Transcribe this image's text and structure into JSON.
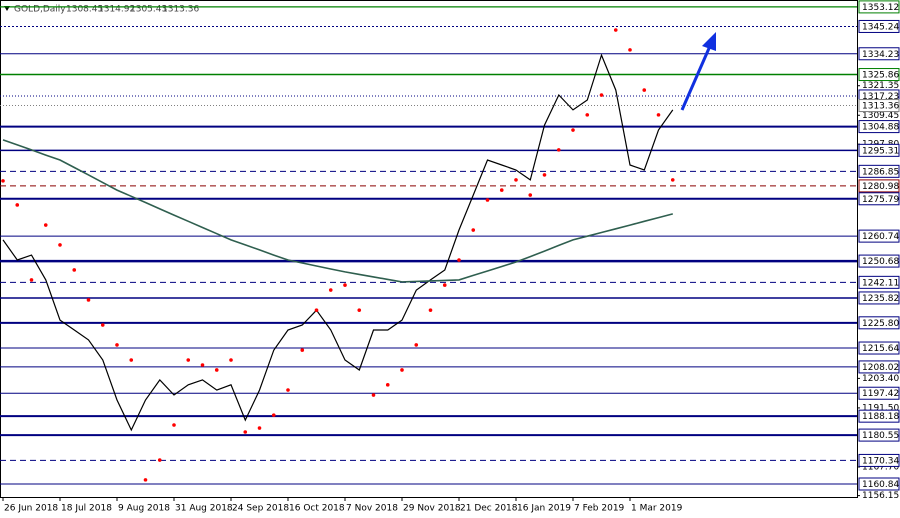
{
  "chart_data": {
    "type": "line",
    "symbol": "GOLD,Daily",
    "ohlc": [
      1308.45,
      1314.92,
      1305.43,
      1313.36
    ],
    "ylim": [
      1155.6,
      1355.9
    ],
    "yticks": [
      1321.35,
      1309.45,
      {
        "value": 1297.8,
        "label": "1297.80"
      },
      {
        "value": 1203.4,
        "label": "1203.40"
      },
      {
        "value": 1191.5,
        "label": "1191.50"
      },
      {
        "value": 1167.7,
        "label": "1167.70"
      },
      1156.15
    ],
    "levels": [
      {
        "value": 1353.12,
        "color": "#008000",
        "width": 1.2
      },
      {
        "value": 1345.24,
        "color": "#000080",
        "width": 1,
        "dash": "2,2"
      },
      {
        "value": 1334.23,
        "color": "#000080",
        "width": 1
      },
      {
        "value": 1325.86,
        "color": "#008000",
        "width": 1.5
      },
      {
        "value": 1317.23,
        "color": "#000080",
        "width": 1,
        "dash": "1,2"
      },
      {
        "value": 1313.36,
        "color": "#808080",
        "width": 1,
        "dash": "1,2"
      },
      {
        "value": 1304.88,
        "color": "#000080",
        "width": 2
      },
      {
        "value": 1295.31,
        "color": "#000080",
        "width": 1.5
      },
      {
        "value": 1286.85,
        "color": "#000080",
        "width": 1,
        "dash": "6,4"
      },
      {
        "value": 1280.98,
        "color": "#8b0000",
        "width": 1,
        "dash": "6,4"
      },
      {
        "value": 1275.79,
        "color": "#000080",
        "width": 2
      },
      {
        "value": 1260.74,
        "color": "#000080",
        "width": 1
      },
      {
        "value": 1250.68,
        "color": "#000080",
        "width": 2.5
      },
      {
        "value": 1242.11,
        "color": "#000080",
        "width": 1,
        "dash": "6,4"
      },
      {
        "value": 1235.82,
        "color": "#000080",
        "width": 1.5
      },
      {
        "value": 1225.8,
        "label": "1225.80",
        "color": "#000080",
        "width": 2
      },
      {
        "value": 1215.64,
        "color": "#000080",
        "width": 1
      },
      {
        "value": 1208.02,
        "color": "#000080",
        "width": 1
      },
      {
        "value": 1197.42,
        "color": "#000080",
        "width": 1
      },
      {
        "value": 1188.18,
        "color": "#000080",
        "width": 2
      },
      {
        "value": 1180.55,
        "color": "#000080",
        "width": 2
      },
      {
        "value": 1170.34,
        "color": "#000080",
        "width": 1,
        "dash": "6,4"
      },
      {
        "value": 1160.84,
        "color": "#000080",
        "width": 1
      }
    ],
    "categories": [
      "26 Jun 2018",
      null,
      null,
      null,
      "18 Jul 2018",
      null,
      null,
      null,
      "9 Aug 2018",
      null,
      null,
      null,
      "31 Aug 2018",
      null,
      null,
      null,
      "24 Sep 2018",
      null,
      null,
      null,
      "16 Oct 2018",
      null,
      null,
      null,
      "7 Nov 2018",
      null,
      null,
      null,
      "29 Nov 2018",
      null,
      null,
      null,
      "21 Dec 2018",
      null,
      null,
      null,
      "16 Jan 2019",
      null,
      null,
      null,
      "7 Feb 2019",
      null,
      null,
      null,
      "1 Mar 2019",
      null,
      null,
      null
    ],
    "series": [
      {
        "color": "#000000",
        "style": "line",
        "values": [
          1259.2,
          1251.1,
          1253.1,
          1243.1,
          1226.9,
          1222.9,
          1218.9,
          1210.8,
          1194.7,
          1182.6,
          1194.7,
          1202.8,
          1196.7,
          1200.8,
          1202.8,
          1198.7,
          1200.8,
          1186.6,
          1198.7,
          1214.8,
          1222.9,
          1224.9,
          1230.9,
          1222.9,
          1210.8,
          1206.8,
          1222.9,
          1222.9,
          1226.9,
          1239.0,
          1243.1,
          1247.1,
          1263.2,
          1277.3,
          1291.4,
          1289.4,
          1287.4,
          1283.4,
          1305.5,
          1317.6,
          1311.6,
          1315.6,
          1333.7,
          1319.6,
          1289.4,
          1287.4,
          1303.5,
          1311.6
        ]
      },
      {
        "color": "#2f5f4f",
        "style": "line",
        "values": [
          1299.5,
          1297.5,
          1295.5,
          1293.4,
          1291.4,
          1288.4,
          1285.4,
          1282.3,
          1279.3,
          1276.8,
          1274.3,
          1271.7,
          1269.2,
          1266.7,
          1264.2,
          1261.7,
          1259.2,
          1257.2,
          1255.2,
          1253.1,
          1251.1,
          1249.9,
          1248.7,
          1247.5,
          1246.3,
          1245.3,
          1244.3,
          1243.3,
          1242.3,
          1242.5,
          1242.7,
          1242.9,
          1243.1,
          1244.9,
          1246.7,
          1248.5,
          1250.3,
          1252.5,
          1254.7,
          1257.0,
          1259.2,
          1260.7,
          1262.2,
          1263.7,
          1265.2,
          1266.7,
          1268.2,
          1269.7
        ]
      },
      {
        "color": "#ff0000",
        "style": "dots",
        "values": [
          1283.0,
          1273.3,
          1243.1,
          1265.2,
          1257.2,
          1247.1,
          1235.0,
          1224.9,
          1216.9,
          1210.8,
          1162.5,
          1170.5,
          1184.6,
          1210.8,
          1208.8,
          1206.8,
          1210.8,
          1181.8,
          1183.4,
          1188.6,
          1198.7,
          1214.8,
          1230.9,
          1239.0,
          1241.0,
          1230.9,
          1196.7,
          1200.8,
          1206.8,
          1216.9,
          1230.9,
          1241.0,
          1251.1,
          1263.2,
          1275.3,
          1279.3,
          1283.4,
          1277.3,
          1285.4,
          1295.5,
          1303.5,
          1309.6,
          1317.6,
          1343.8,
          1335.8,
          1319.6,
          1309.6,
          1283.4
        ]
      }
    ]
  }
}
